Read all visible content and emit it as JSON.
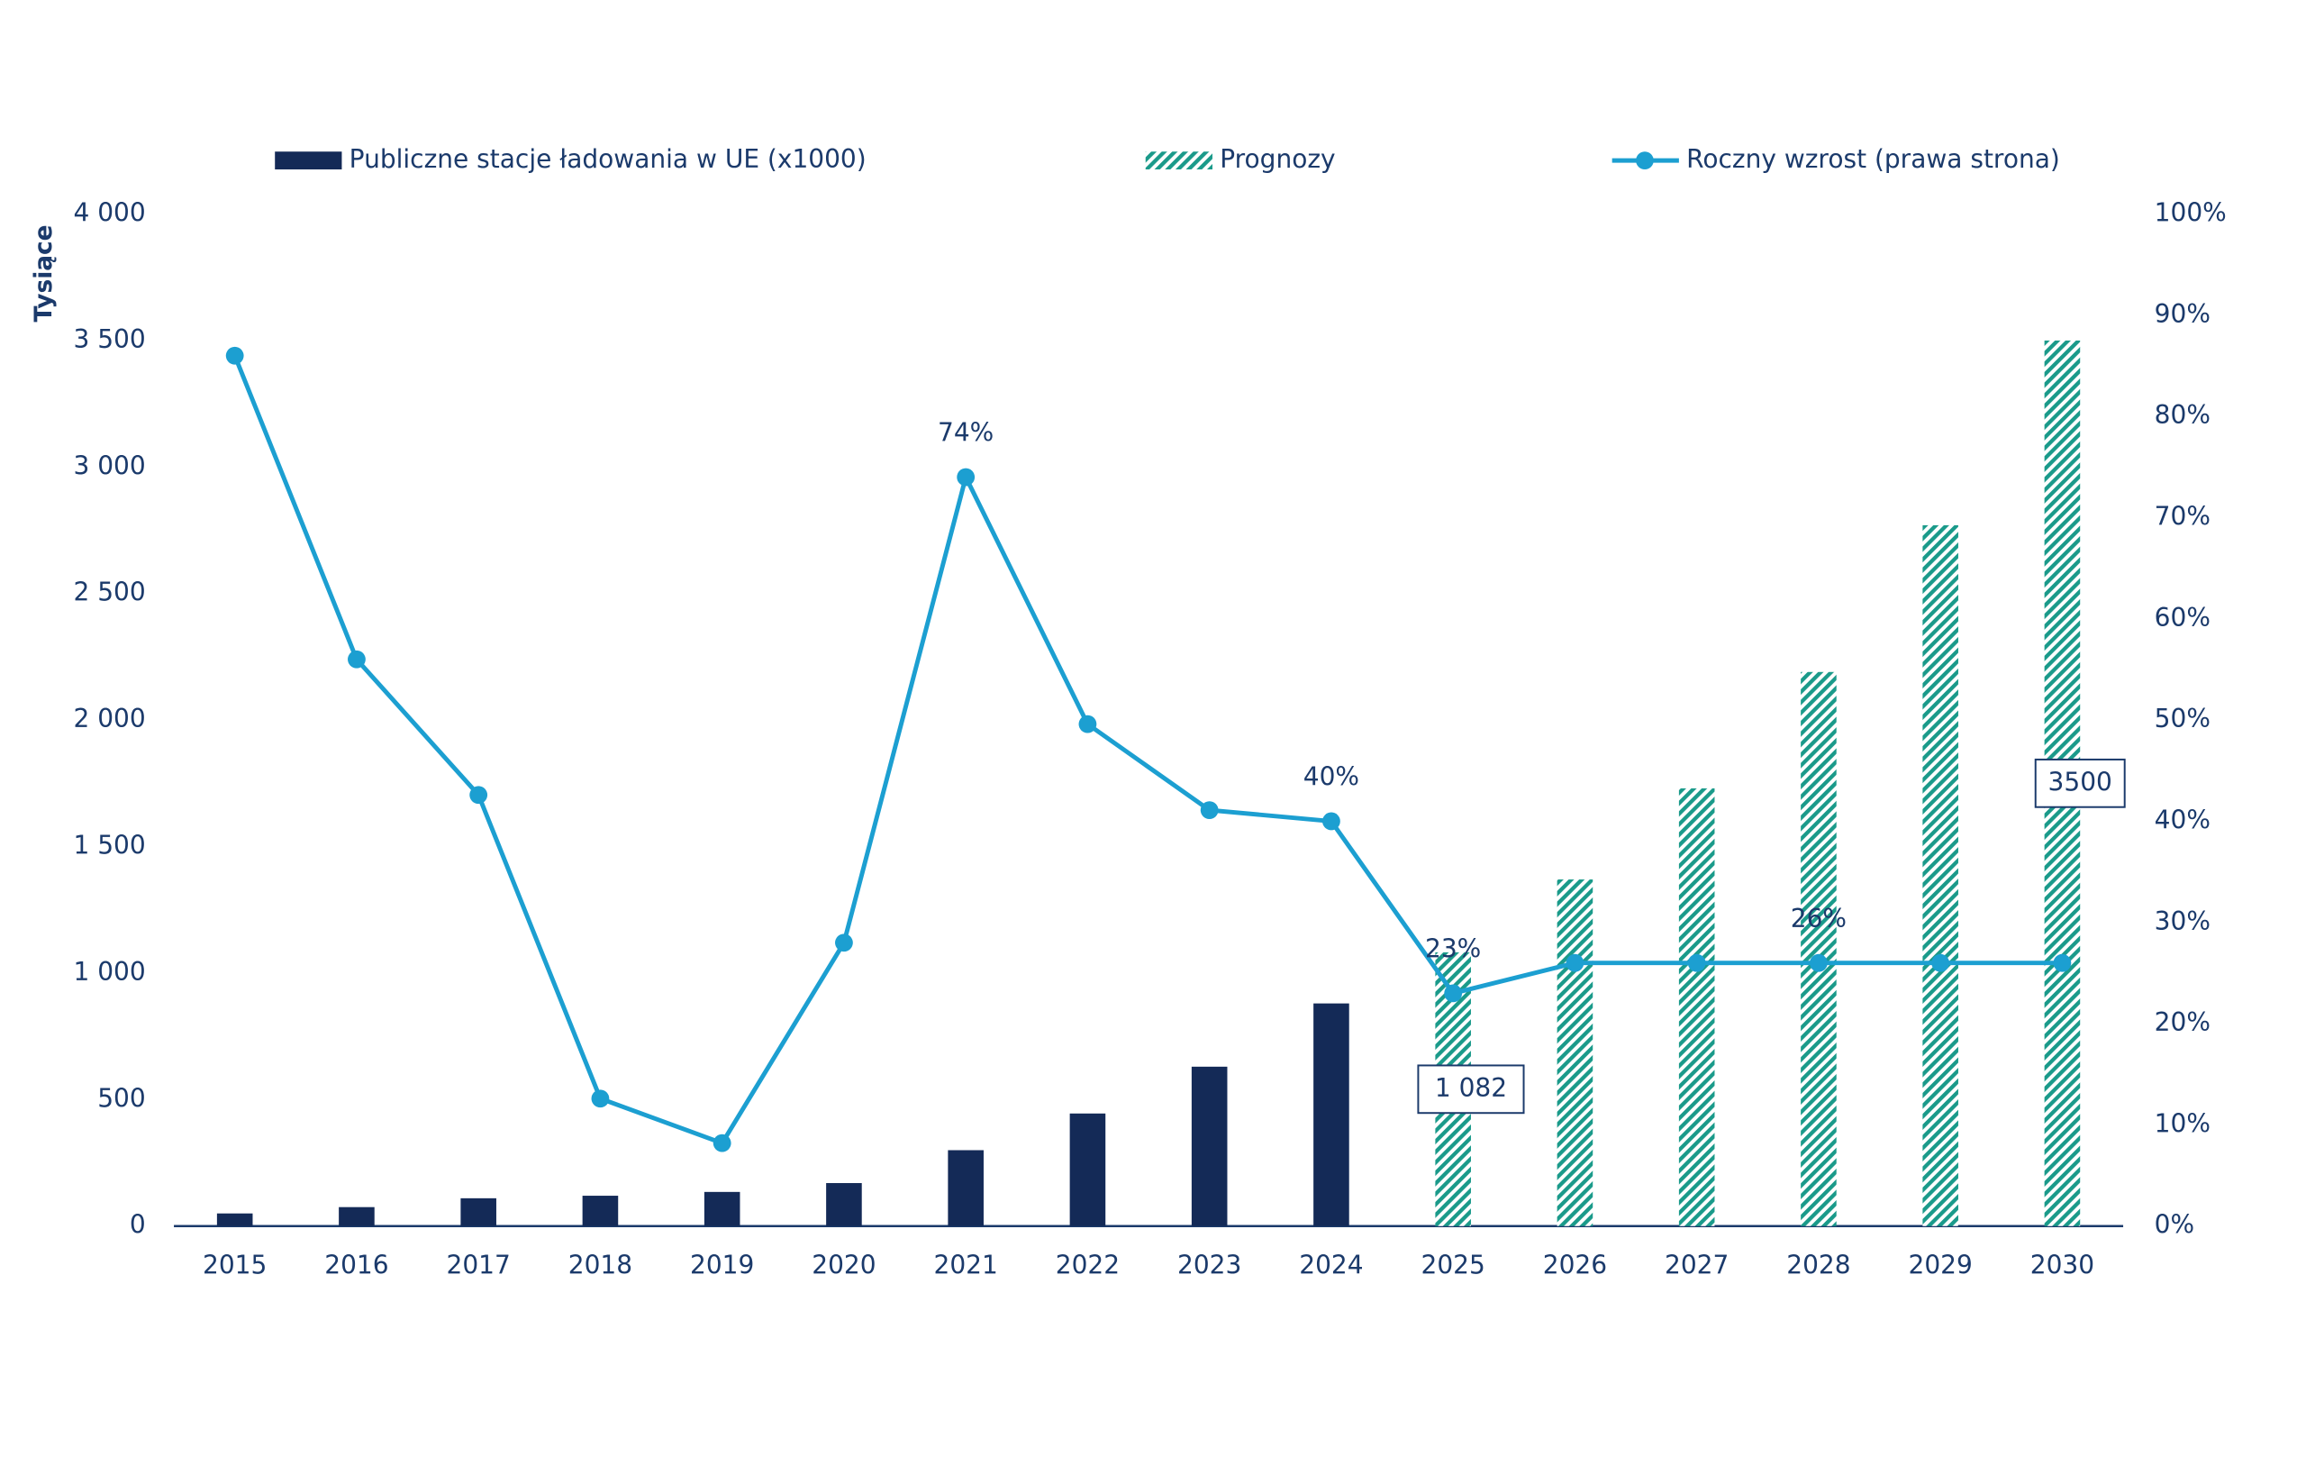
{
  "chart_data": {
    "type": "bar",
    "y_label": "Tysiące",
    "categories": [
      "2015",
      "2016",
      "2017",
      "2018",
      "2019",
      "2020",
      "2021",
      "2022",
      "2023",
      "2024",
      "2025",
      "2026",
      "2027",
      "2028",
      "2029",
      "2030"
    ],
    "series": [
      {
        "name": "Publiczne stacje ładowania w UE (x1000)",
        "type": "bar",
        "color": "#142a57",
        "values": [
          50,
          75,
          110,
          120,
          135,
          170,
          300,
          445,
          630,
          880,
          null,
          null,
          null,
          null,
          null,
          null
        ]
      },
      {
        "name": "Prognozy",
        "type": "bar",
        "color": "#1a9a8a",
        "pattern": "hatch",
        "values": [
          null,
          null,
          null,
          null,
          null,
          null,
          null,
          null,
          null,
          null,
          1082,
          1370,
          1730,
          2190,
          2770,
          3500
        ],
        "value_labels": [
          null,
          null,
          null,
          null,
          null,
          null,
          null,
          null,
          null,
          null,
          "1 082",
          null,
          null,
          null,
          null,
          "3500"
        ]
      },
      {
        "name": "Roczny wzrost (prawa strona)",
        "type": "line",
        "axis": "y2",
        "color": "#1c9fd1",
        "values": [
          86,
          56,
          42.6,
          12.6,
          8.2,
          28,
          74,
          49.6,
          41.1,
          40,
          23,
          26,
          26,
          26,
          26,
          26
        ],
        "value_labels": [
          null,
          null,
          null,
          null,
          null,
          null,
          "74%",
          null,
          null,
          "40%",
          "23%",
          null,
          null,
          "26%",
          null,
          null
        ]
      }
    ],
    "ylim": [
      0,
      4000
    ],
    "yticks": [
      0,
      500,
      {
        "value": 1000,
        "label": "1 000"
      },
      {
        "value": 1500,
        "label": "1 500"
      },
      {
        "value": 2000,
        "label": "2 000"
      },
      {
        "value": 2500,
        "label": "2 500"
      },
      {
        "value": 3000,
        "label": "3 000"
      },
      {
        "value": 3500,
        "label": "3 500"
      },
      {
        "value": 4000,
        "label": "4 000"
      }
    ],
    "y2lim": [
      0,
      100
    ],
    "y2ticks": [
      {
        "value": 0,
        "label": "0%"
      },
      {
        "value": 10,
        "label": "10%"
      },
      {
        "value": 20,
        "label": "20%"
      },
      {
        "value": 30,
        "label": "30%"
      },
      {
        "value": 40,
        "label": "40%"
      },
      {
        "value": 50,
        "label": "50%"
      },
      {
        "value": 60,
        "label": "60%"
      },
      {
        "value": 70,
        "label": "70%"
      },
      {
        "value": 80,
        "label": "80%"
      },
      {
        "value": 90,
        "label": "90%"
      },
      {
        "value": 100,
        "label": "100%"
      }
    ],
    "legend": "top"
  }
}
